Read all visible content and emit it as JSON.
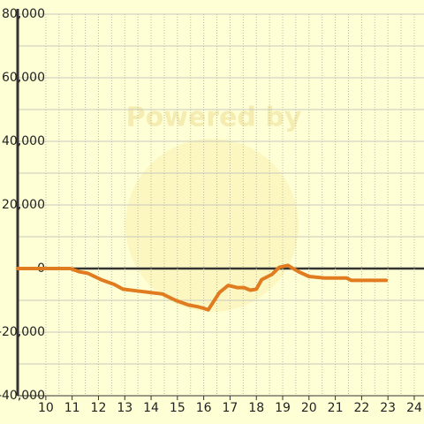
{
  "chart_data": {
    "type": "line",
    "watermark": "Powered by",
    "x": [
      8.93,
      10.93,
      11.27,
      11.6,
      12.1,
      12.6,
      12.93,
      13.43,
      13.93,
      14.43,
      14.93,
      15.43,
      15.77,
      16.0,
      16.17,
      16.6,
      16.93,
      17.27,
      17.53,
      17.77,
      18.0,
      18.2,
      18.6,
      18.87,
      19.2,
      19.6,
      20.0,
      20.6,
      21.43,
      21.6,
      22.93
    ],
    "series": [
      {
        "color": "#e07b20",
        "values": [
          0,
          0,
          -1000,
          -1500,
          -3500,
          -5000,
          -6500,
          -7000,
          -7500,
          -8000,
          -10000,
          -11500,
          -12000,
          -12500,
          -13000,
          -7500,
          -5300,
          -6000,
          -6000,
          -6800,
          -6500,
          -3500,
          -1800,
          400,
          1000,
          -1000,
          -2500,
          -3000,
          -3000,
          -3700,
          -3700
        ]
      }
    ],
    "xlim": [
      8.93,
      24.37
    ],
    "xticks": [
      10,
      11,
      12,
      13,
      14,
      15,
      16,
      17,
      18,
      19,
      20,
      21,
      22,
      23,
      24
    ],
    "ylim": [
      -40000,
      80000
    ],
    "yticks": [
      {
        "value": -40000,
        "label": "-40,000"
      },
      {
        "value": -20000,
        "label": "-20,000"
      },
      0,
      {
        "value": 20000,
        "label": "20,000"
      },
      {
        "value": 40000,
        "label": "40,000"
      },
      {
        "value": 60000,
        "label": "60,000"
      },
      {
        "value": 80000,
        "label": "80,000"
      }
    ],
    "grid": true
  }
}
